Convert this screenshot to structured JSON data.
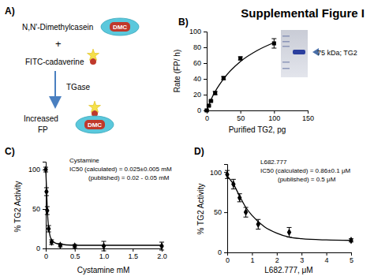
{
  "figure_title": "Supplemental Figure I",
  "diagram": {
    "panel": "A)",
    "substrate": "N,N'-Dimethylcasein",
    "badge": "DMC",
    "plus": "+",
    "probe": "FITC-cadaverine",
    "enzyme": "TGase",
    "product_line1": "Increased",
    "product_line2": "FP"
  },
  "chart_data": [
    {
      "type": "scatter",
      "panel": "B)",
      "x_label": "Purified TG2, pg",
      "y_label": "Rate (FP/ h)",
      "xlim": [
        0,
        150
      ],
      "xticks": [
        0,
        50,
        100,
        150
      ],
      "ylim": [
        0,
        100
      ],
      "yticks": [
        0,
        20,
        40,
        60,
        80,
        100
      ],
      "annotations": [
        "75 kDa; TG2"
      ],
      "series": [
        {
          "type": "scatter",
          "marker": "square",
          "color": "#000000",
          "x": [
            0,
            3.125,
            6.25,
            12.5,
            25,
            50,
            100
          ],
          "values": [
            0,
            6,
            12,
            22,
            41,
            66,
            85
          ],
          "errors": [
            1,
            1,
            1,
            2,
            2,
            2,
            6
          ]
        },
        {
          "type": "line",
          "line_style": "solid",
          "color": "#000000",
          "x": [
            0,
            5,
            10,
            25,
            50,
            75,
            100
          ],
          "values": [
            0,
            11,
            20,
            40,
            62,
            76,
            86
          ]
        }
      ]
    },
    {
      "type": "scatter",
      "panel": "C)",
      "x_label": "Cystamine mM",
      "y_label": "% TG2 Activity",
      "xlim": [
        0,
        2.0
      ],
      "xticks": [
        0,
        0.5,
        {
          "value": 1,
          "label": "1.0"
        },
        1.5,
        {
          "value": 2,
          "label": "2.0"
        }
      ],
      "ylim": [
        0,
        110
      ],
      "yticks": [
        0,
        50,
        100
      ],
      "annotations": [
        "Cystamine",
        "IC50 (calculated) = 0.025±0.005 mM",
        "(published) = 0.02 - 0.05 mM"
      ],
      "series": [
        {
          "type": "scatter",
          "marker": "diamond",
          "color": "#000000",
          "x": [
            0,
            0.0125,
            0.025,
            0.05,
            0.1,
            0.25,
            0.5,
            1.0,
            2.0
          ],
          "values": [
            100,
            72,
            48,
            25,
            8,
            4,
            3,
            3,
            3
          ],
          "errors": [
            3,
            5,
            5,
            4,
            3,
            2,
            2,
            6,
            5
          ]
        },
        {
          "type": "line",
          "line_style": "solid",
          "color": "#000000",
          "x": [
            0,
            0.01,
            0.025,
            0.05,
            0.1,
            0.2,
            0.5,
            1.0,
            2.0
          ],
          "values": [
            100,
            82,
            52,
            26,
            11,
            6,
            4,
            4,
            4
          ]
        }
      ]
    },
    {
      "type": "scatter",
      "panel": "D)",
      "x_label": "L682.777, μM",
      "y_label": "% TG2 Activity",
      "xlim": [
        0,
        5
      ],
      "xticks": [
        0,
        1,
        2,
        3,
        4,
        5
      ],
      "ylim": [
        0,
        110
      ],
      "yticks": [
        0,
        50,
        100
      ],
      "annotations": [
        "L682.777",
        "IC50 (calculated) = 0.86±0.1 μM",
        "(published) = 0.5 μM"
      ],
      "series": [
        {
          "type": "scatter",
          "marker": "diamond",
          "color": "#000000",
          "x": [
            0,
            0.25,
            0.5,
            0.75,
            1.25,
            2.5,
            5
          ],
          "values": [
            97,
            85,
            68,
            50,
            35,
            25,
            15
          ],
          "errors": [
            5,
            6,
            5,
            6,
            6,
            6,
            2
          ]
        },
        {
          "type": "line",
          "line_style": "solid",
          "color": "#000000",
          "x": [
            0,
            0.25,
            0.5,
            0.75,
            1,
            1.5,
            2,
            2.5,
            3,
            4,
            5
          ],
          "values": [
            95,
            85,
            70,
            56,
            46,
            32,
            24,
            19,
            17,
            15.5,
            15
          ]
        }
      ]
    }
  ]
}
